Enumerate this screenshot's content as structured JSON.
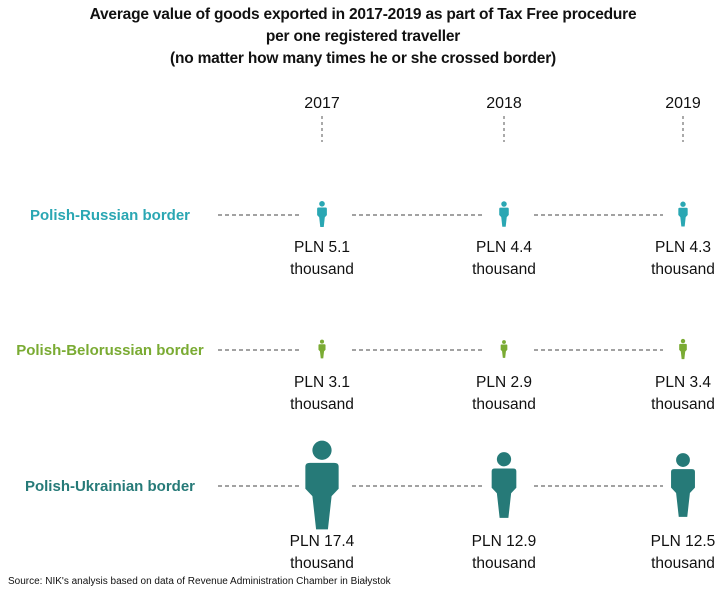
{
  "chart_data": {
    "type": "pictogram",
    "title": [
      "Average value of goods exported in 2017-2019 as part of Tax Free procedure",
      "per one registered traveller",
      "(no matter how many times he or she crossed border)"
    ],
    "categories": [
      "2017",
      "2018",
      "2019"
    ],
    "unit_prefix": "PLN",
    "unit_suffix": "thousand",
    "series": [
      {
        "name": "Polish-Russian border",
        "color": "#2aa7b3",
        "values": [
          5.1,
          4.4,
          4.3
        ]
      },
      {
        "name": "Polish-Belorussian border",
        "color": "#7aab33",
        "values": [
          3.1,
          2.9,
          3.4
        ]
      },
      {
        "name": "Polish-Ukrainian border",
        "color": "#267a78",
        "values": [
          17.4,
          12.9,
          12.5
        ]
      }
    ],
    "icon": "person-icon"
  },
  "source": "Source:  NIK's analysis based on data of  Revenue Administration Chamber in Białystok"
}
